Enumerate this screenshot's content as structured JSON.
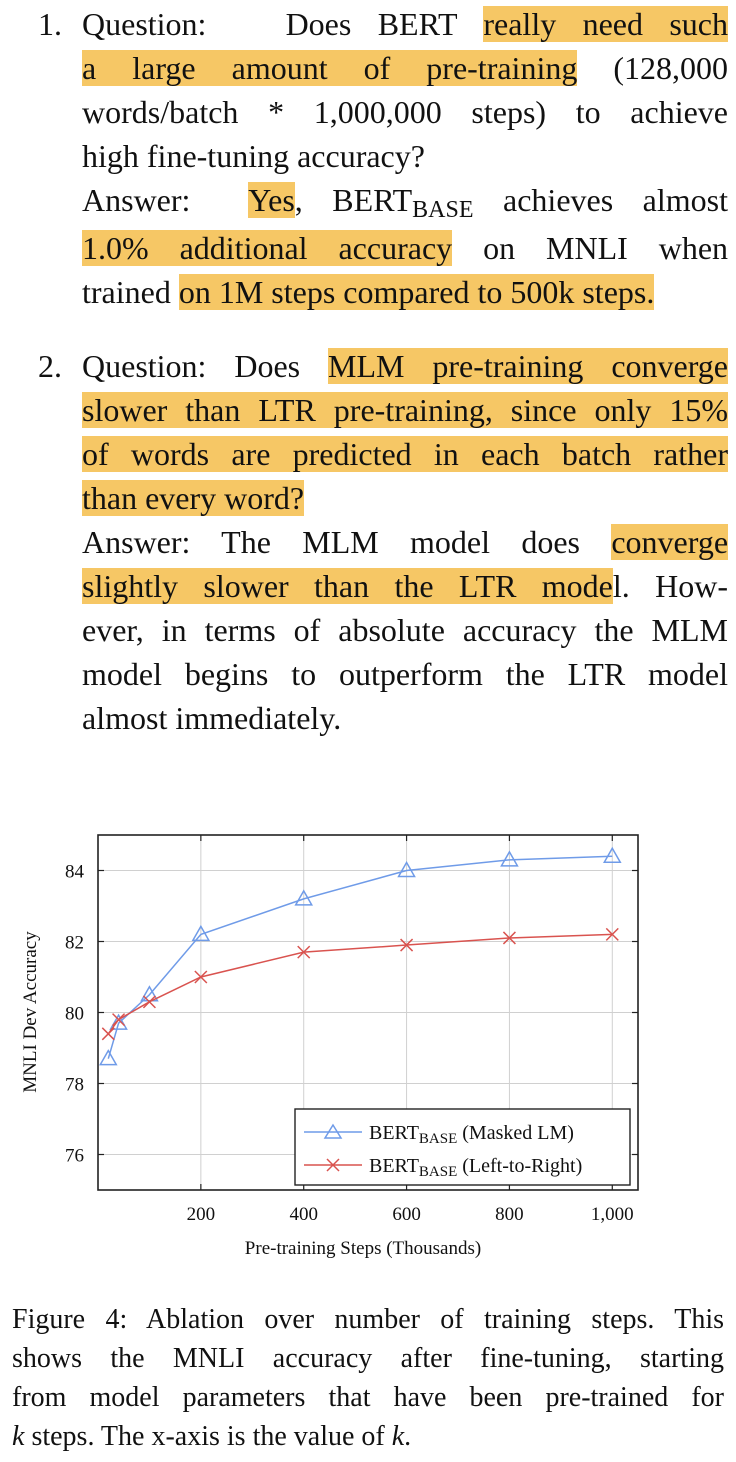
{
  "item1": {
    "number": "1.",
    "q_prefix": "Question:",
    "q_a": "Does BERT",
    "q_hl1": "really need such",
    "q_hl2": "a large amount of pre-training",
    "q_c": "(128,000",
    "q_d": "words/batch * 1,000,000 steps) to achieve",
    "q_e": "high fine-tuning accuracy?",
    "a_prefix": "Answer:",
    "a_hl_yes": "Yes",
    "a_comma": ",",
    "a_bert": "BERT",
    "a_base": "BASE",
    "a_b": "achieves almost",
    "a_hl_acc": "1.0% additional accuracy",
    "a_c": "on MNLI when",
    "a_d": "trained",
    "a_hl_steps": "on 1M steps compared to 500k steps."
  },
  "item2": {
    "number": "2.",
    "q_prefix": "Question: Does",
    "q_hl1": "MLM pre-training converge",
    "q_hl2": "slower than LTR pre-training, since only 15%",
    "q_hl3": "of words are predicted in each batch rather",
    "q_hl4": "than every word?",
    "a_prefix": "Answer:  The MLM model does",
    "a_hl1": "converge",
    "a_hl2": "slightly slower than the LTR mode",
    "a_b": "l.  How-",
    "a_c": "ever, in terms of absolute accuracy the MLM",
    "a_d": "model begins to outperform the LTR model",
    "a_e": "almost immediately."
  },
  "chart_data": {
    "type": "line",
    "xlabel": "Pre-training Steps (Thousands)",
    "ylabel": "MNLI Dev Accuracy",
    "x_ticks": [
      "200",
      "400",
      "600",
      "800",
      "1,000"
    ],
    "y_ticks": [
      "76",
      "78",
      "80",
      "82",
      "84"
    ],
    "xlim": [
      0,
      1050
    ],
    "ylim": [
      75,
      85
    ],
    "grid": true,
    "legend_position": "bottom-right",
    "series": [
      {
        "name": "BERTBASE (Masked LM)",
        "name_main": "BERT",
        "name_sub": "BASE",
        "name_rest": "(Masked LM)",
        "marker": "triangle",
        "color": "#6f9be8",
        "x": [
          20,
          40,
          100,
          200,
          400,
          600,
          800,
          1000
        ],
        "y": [
          78.7,
          79.7,
          80.5,
          82.2,
          83.2,
          84.0,
          84.3,
          84.4
        ]
      },
      {
        "name": "BERTBASE (Left-to-Right)",
        "name_main": "BERT",
        "name_sub": "BASE",
        "name_rest": "(Left-to-Right)",
        "marker": "x",
        "color": "#d9534f",
        "x": [
          20,
          40,
          100,
          200,
          400,
          600,
          800,
          1000
        ],
        "y": [
          79.4,
          79.8,
          80.3,
          81.0,
          81.7,
          81.9,
          82.1,
          82.2
        ]
      }
    ]
  },
  "caption": {
    "l1": "Figure 4: Ablation over number of training steps. This",
    "l2": "shows the MNLI accuracy after fine-tuning, starting",
    "l3": "from model parameters that have been pre-trained for",
    "k1": "k",
    "l4a": "steps. The x-axis is the value of",
    "k2": "k",
    "l4b": "."
  }
}
